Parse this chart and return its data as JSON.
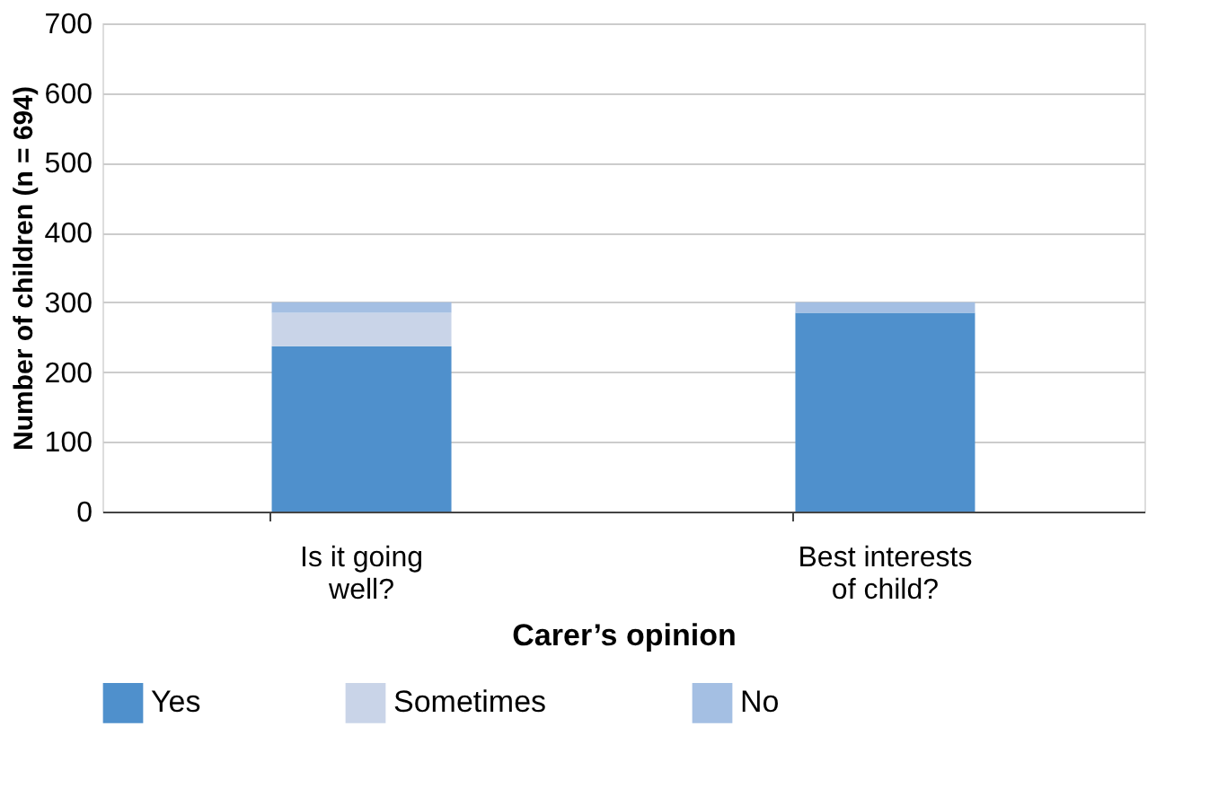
{
  "chart_data": {
    "type": "bar",
    "stacked": true,
    "xlabel": "Carer’s opinion",
    "ylabel": "Number of children (n = 694)",
    "categories": [
      "Is it going well?",
      "Best interests of child?"
    ],
    "series": [
      {
        "name": "Yes",
        "color": "#4f90cc",
        "values": [
          237,
          285
        ]
      },
      {
        "name": "Sometimes",
        "color": "#c9d4e8",
        "values": [
          48,
          0
        ]
      },
      {
        "name": "No",
        "color": "#a4bfe3",
        "values": [
          15,
          15
        ]
      }
    ],
    "ylim": [
      0,
      700
    ],
    "yticks": [
      0,
      100,
      200,
      300,
      400,
      500,
      600,
      700
    ],
    "grid": "y",
    "legend": "bottom"
  }
}
